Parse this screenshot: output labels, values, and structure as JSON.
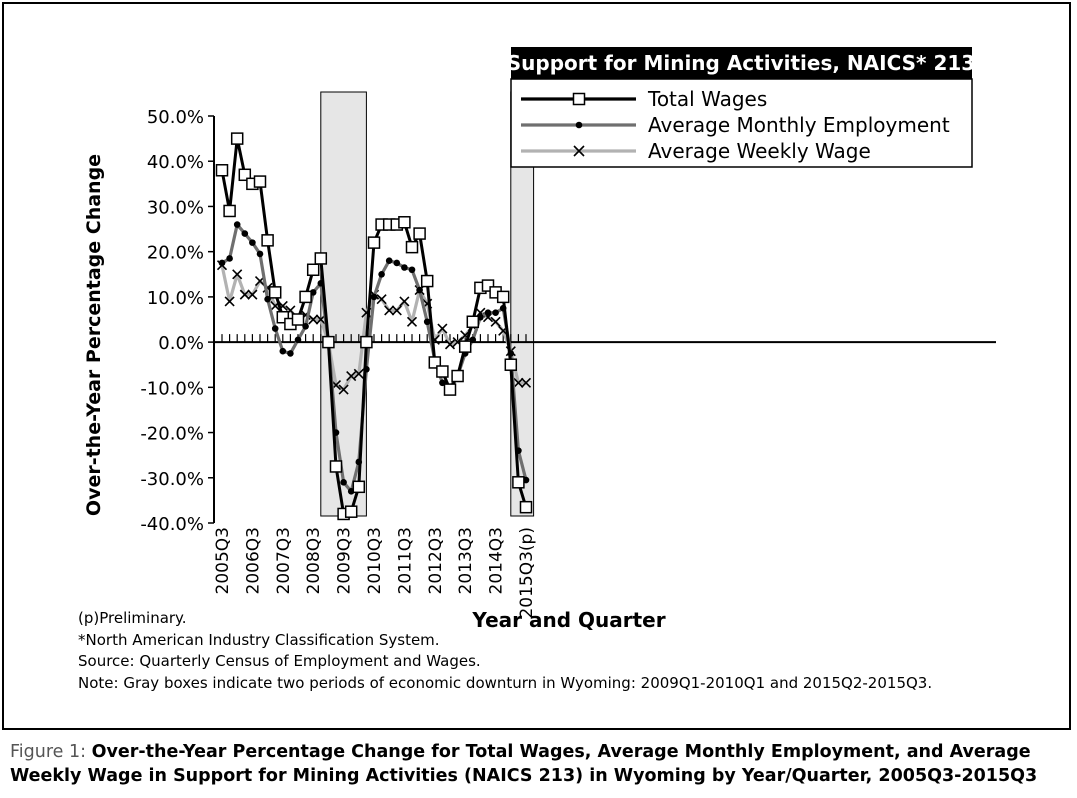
{
  "notes": [
    "(p)Preliminary.",
    "*North American Industry Classification System.",
    "Source: Quarterly Census of Employment and Wages.",
    "Note: Gray boxes indicate two periods of economic downturn in Wyoming: 2009Q1-2010Q1 and 2015Q2-2015Q3."
  ],
  "caption": {
    "lead": "Figure 1: ",
    "text": "Over-the-Year Percentage Change for Total Wages, Average Monthly Employment, and Average Weekly Wage in Support for Mining Activities (NAICS 213) in Wyoming by Year/Quarter, 2005Q3-2015Q3"
  },
  "chart_data": {
    "type": "line",
    "title": "Support for Mining Activities, NAICS* 213",
    "xlabel": "Year and Quarter",
    "ylabel": "Over-the-Year Percentage Change",
    "ylim": [
      -40,
      50
    ],
    "yticks": [
      -40,
      -30,
      -20,
      -10,
      0,
      10,
      20,
      30,
      40,
      50
    ],
    "ytick_labels": [
      "-40.0%",
      "-30.0%",
      "-20.0%",
      "-10.0%",
      "0.0%",
      "10.0%",
      "20.0%",
      "30.0%",
      "40.0%",
      "50.0%"
    ],
    "x_tick_labels": [
      "2005Q3",
      "2006Q3",
      "2007Q3",
      "2008Q3",
      "2009Q3",
      "2010Q3",
      "2011Q3",
      "2012Q3",
      "2013Q3",
      "2014Q3",
      "2015Q3(p)"
    ],
    "x": [
      "2005Q3",
      "2005Q4",
      "2006Q1",
      "2006Q2",
      "2006Q3",
      "2006Q4",
      "2007Q1",
      "2007Q2",
      "2007Q3",
      "2007Q4",
      "2008Q1",
      "2008Q2",
      "2008Q3",
      "2008Q4",
      "2009Q1",
      "2009Q2",
      "2009Q3",
      "2009Q4",
      "2010Q1",
      "2010Q2",
      "2010Q3",
      "2010Q4",
      "2011Q1",
      "2011Q2",
      "2011Q3",
      "2011Q4",
      "2012Q1",
      "2012Q2",
      "2012Q3",
      "2012Q4",
      "2013Q1",
      "2013Q2",
      "2013Q3",
      "2013Q4",
      "2014Q1",
      "2014Q2",
      "2014Q3",
      "2014Q4",
      "2015Q1",
      "2015Q2",
      "2015Q3"
    ],
    "legend_position": "top-right",
    "shaded_periods": [
      {
        "start": "2009Q1",
        "end": "2010Q1"
      },
      {
        "start": "2015Q2",
        "end": "2015Q3"
      }
    ],
    "grid": false,
    "series": [
      {
        "name": "Total Wages",
        "color": "#000000",
        "marker": "square",
        "values": [
          38.0,
          29.0,
          45.0,
          37.0,
          35.0,
          35.5,
          22.5,
          11.0,
          5.5,
          4.0,
          5.0,
          10.0,
          16.0,
          18.5,
          0.0,
          -27.5,
          -38.0,
          -37.5,
          -32.0,
          0.0,
          22.0,
          26.0,
          26.0,
          26.0,
          26.5,
          21.0,
          24.0,
          13.5,
          -4.5,
          -6.5,
          -10.5,
          -7.5,
          -1.0,
          4.5,
          12.0,
          12.5,
          11.0,
          10.0,
          -5.0,
          -31.0,
          -36.5
        ]
      },
      {
        "name": "Average Monthly Employment",
        "color": "#6f6f6f",
        "marker": "dot",
        "values": [
          17.5,
          18.5,
          26.0,
          24.0,
          22.0,
          19.5,
          9.5,
          3.0,
          -2.0,
          -2.5,
          0.5,
          3.5,
          11.0,
          13.0,
          0.0,
          -20.0,
          -31.0,
          -33.0,
          -26.5,
          -6.0,
          10.0,
          15.0,
          18.0,
          17.5,
          16.5,
          16.0,
          11.5,
          4.5,
          -4.0,
          -9.0,
          -10.0,
          -7.5,
          -2.5,
          0.5,
          5.5,
          6.5,
          6.5,
          7.5,
          -2.5,
          -24.0,
          -30.5
        ]
      },
      {
        "name": "Average Weekly Wage",
        "color": "#b2b2b2",
        "marker": "x",
        "values": [
          17.0,
          9.0,
          15.0,
          10.5,
          10.5,
          13.5,
          12.0,
          8.0,
          8.0,
          7.0,
          5.0,
          6.0,
          5.0,
          5.0,
          0.0,
          -9.5,
          -10.5,
          -7.5,
          -7.0,
          6.5,
          10.5,
          9.5,
          7.0,
          7.0,
          9.0,
          4.5,
          11.5,
          8.5,
          0.5,
          3.0,
          -0.5,
          0.0,
          1.5,
          3.5,
          6.5,
          5.5,
          4.5,
          2.5,
          -2.0,
          -9.0,
          -9.0
        ]
      }
    ]
  }
}
